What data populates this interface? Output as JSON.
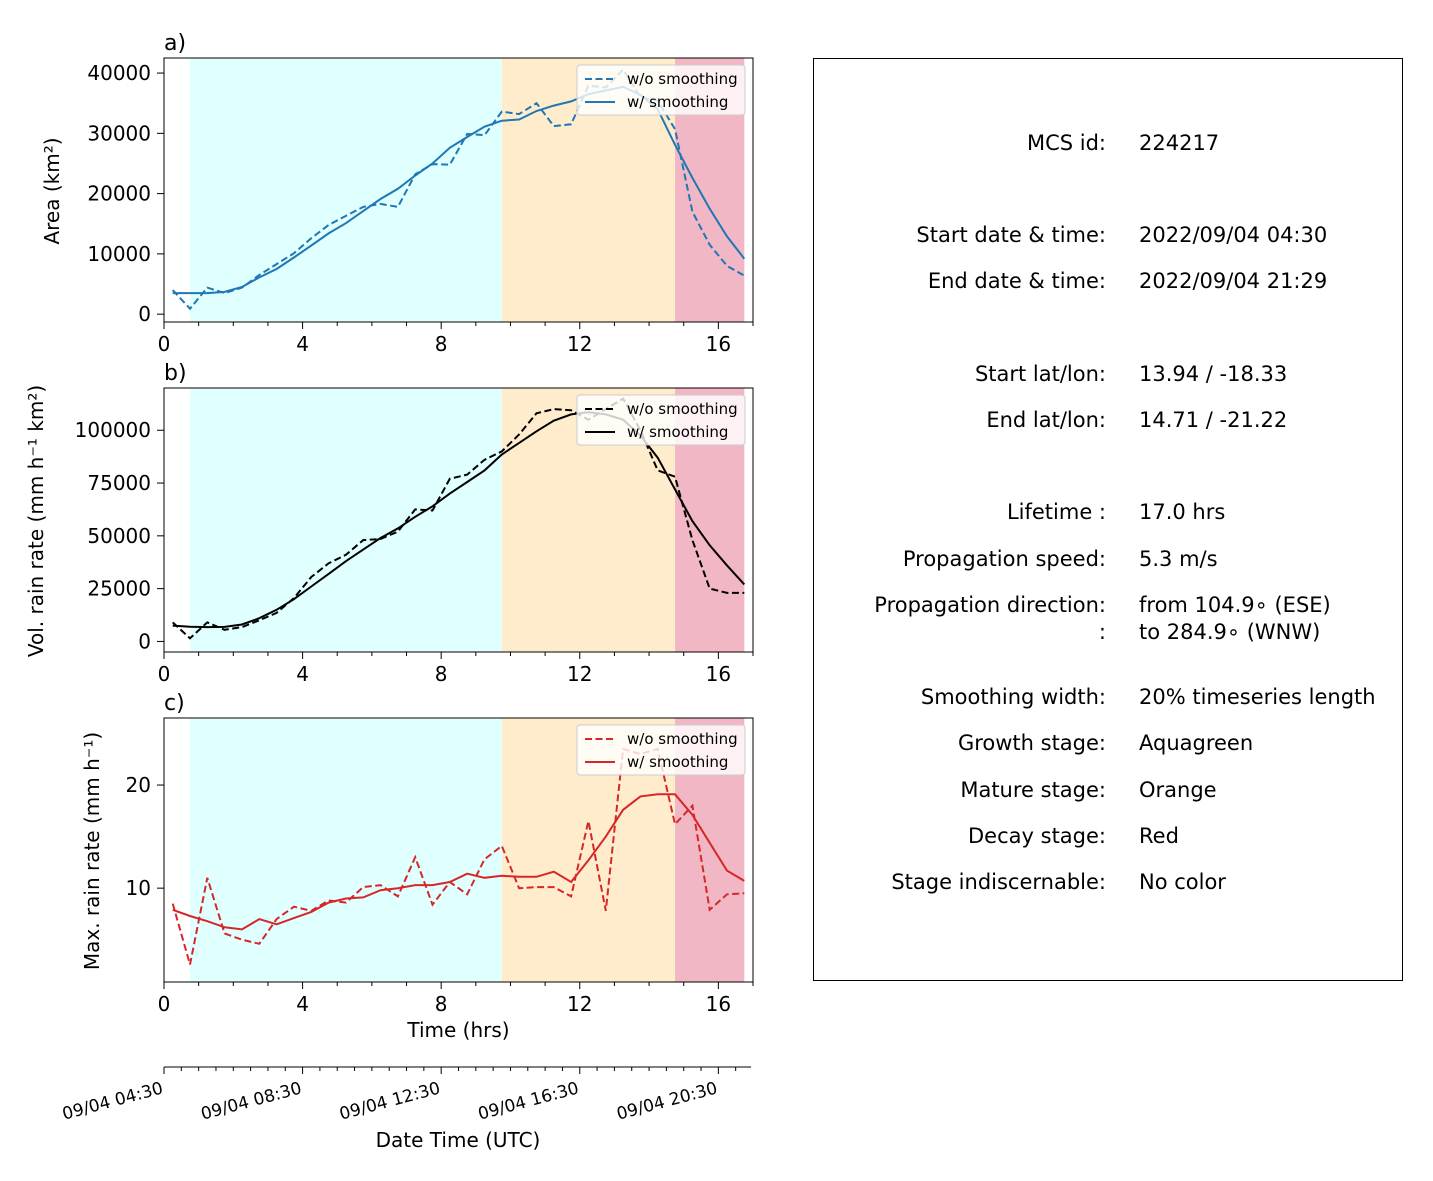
{
  "chart_data": [
    {
      "type": "line",
      "panel_label": "a)",
      "ylabel": "Area  (km²)",
      "xlim": [
        0,
        17
      ],
      "ylim": [
        -1300,
        42500
      ],
      "xticks": [
        0,
        4,
        8,
        12,
        16
      ],
      "yticks": [
        0,
        10000,
        20000,
        30000,
        40000
      ],
      "stages": [
        {
          "name": "Growth",
          "start": 0.75,
          "end": 9.75,
          "color": "#e0ffff"
        },
        {
          "name": "Mature",
          "start": 9.75,
          "end": 14.75,
          "color": "#ffeccc"
        },
        {
          "name": "Decay",
          "start": 14.75,
          "end": 16.75,
          "color": "#f2b7c4"
        }
      ],
      "legend": {
        "position": "top-right",
        "entries": [
          "w/o smoothing",
          "w/ smoothing"
        ]
      },
      "series": [
        {
          "name": "w/o smoothing",
          "style": "dashed",
          "color": "#1f77b4",
          "x": [
            0.25,
            0.75,
            1.25,
            1.75,
            2.25,
            2.75,
            3.25,
            3.75,
            4.25,
            4.75,
            5.25,
            5.75,
            6.25,
            6.75,
            7.25,
            7.75,
            8.25,
            8.75,
            9.25,
            9.75,
            10.25,
            10.75,
            11.25,
            11.75,
            12.25,
            12.75,
            13.25,
            13.75,
            14.25,
            14.75,
            15.25,
            15.75,
            16.25,
            16.75
          ],
          "y": [
            4000,
            900,
            4400,
            3500,
            4400,
            6500,
            8300,
            10100,
            12600,
            14800,
            16300,
            17800,
            18300,
            17800,
            23200,
            24900,
            24800,
            29900,
            29700,
            33600,
            33200,
            35000,
            31200,
            31500,
            37900,
            37600,
            40600,
            36000,
            35400,
            30700,
            17000,
            11500,
            8000,
            6400
          ]
        },
        {
          "name": "w/ smoothing",
          "style": "solid",
          "color": "#1f77b4",
          "x": [
            0.25,
            0.75,
            1.25,
            1.75,
            2.25,
            2.75,
            3.25,
            3.75,
            4.25,
            4.75,
            5.25,
            5.75,
            6.25,
            6.75,
            7.25,
            7.75,
            8.25,
            8.75,
            9.25,
            9.75,
            10.25,
            10.75,
            11.25,
            11.75,
            12.25,
            12.75,
            13.25,
            13.75,
            14.25,
            14.75,
            15.25,
            15.75,
            16.25,
            16.75
          ],
          "y": [
            3500,
            3500,
            3500,
            3700,
            4500,
            6100,
            7500,
            9400,
            11400,
            13400,
            15100,
            17100,
            19100,
            20800,
            23000,
            25000,
            27600,
            29400,
            31100,
            32100,
            32300,
            33700,
            34600,
            35300,
            36500,
            37100,
            37700,
            36400,
            34000,
            28100,
            22600,
            17500,
            12900,
            9200
          ]
        }
      ]
    },
    {
      "type": "line",
      "panel_label": "b)",
      "ylabel": "Vol. rain rate (mm h⁻¹ km²)",
      "xlim": [
        0,
        17
      ],
      "ylim": [
        -5000,
        120000
      ],
      "xticks": [
        0,
        4,
        8,
        12,
        16
      ],
      "yticks": [
        0,
        25000,
        50000,
        75000,
        100000
      ],
      "stages": [
        {
          "name": "Growth",
          "start": 0.75,
          "end": 9.75,
          "color": "#e0ffff"
        },
        {
          "name": "Mature",
          "start": 9.75,
          "end": 14.75,
          "color": "#ffeccc"
        },
        {
          "name": "Decay",
          "start": 14.75,
          "end": 16.75,
          "color": "#f2b7c4"
        }
      ],
      "legend": {
        "position": "top-right",
        "entries": [
          "w/o smoothing",
          "w/ smoothing"
        ]
      },
      "series": [
        {
          "name": "w/o smoothing",
          "style": "dashed",
          "color": "#000000",
          "x": [
            0.25,
            0.75,
            1.25,
            1.75,
            2.25,
            2.75,
            3.25,
            3.75,
            4.25,
            4.75,
            5.25,
            5.75,
            6.25,
            6.75,
            7.25,
            7.75,
            8.25,
            8.75,
            9.25,
            9.75,
            10.25,
            10.75,
            11.25,
            11.75,
            12.25,
            12.75,
            13.25,
            13.75,
            14.25,
            14.75,
            15.25,
            15.75,
            16.25,
            16.75
          ],
          "y": [
            9000,
            1500,
            9000,
            5500,
            6800,
            10000,
            13500,
            20500,
            30500,
            37000,
            41000,
            48000,
            48500,
            52000,
            62500,
            62000,
            77000,
            79000,
            86000,
            90000,
            98000,
            108000,
            110000,
            109500,
            105000,
            110000,
            115000,
            100000,
            81000,
            78000,
            48000,
            25000,
            23000,
            23000
          ]
        },
        {
          "name": "w/ smoothing",
          "style": "solid",
          "color": "#000000",
          "x": [
            0.25,
            0.75,
            1.25,
            1.75,
            2.25,
            2.75,
            3.25,
            3.75,
            4.25,
            4.75,
            5.25,
            5.75,
            6.25,
            6.75,
            7.25,
            7.75,
            8.25,
            8.75,
            9.25,
            9.75,
            10.25,
            10.75,
            11.25,
            11.75,
            12.25,
            12.75,
            13.25,
            13.75,
            14.25,
            14.75,
            15.25,
            15.75,
            16.25,
            16.75
          ],
          "y": [
            7500,
            7000,
            6800,
            6900,
            8000,
            11000,
            15000,
            20000,
            26000,
            32000,
            38000,
            43500,
            49000,
            53500,
            59000,
            64000,
            70000,
            75500,
            81000,
            88500,
            94000,
            99500,
            104500,
            107500,
            108500,
            107500,
            105000,
            97500,
            87000,
            72000,
            57000,
            45500,
            36000,
            27000
          ]
        }
      ]
    },
    {
      "type": "line",
      "panel_label": "c)",
      "ylabel": "Max. rain rate  (mm h⁻¹)",
      "xlabel": "Time (hrs)",
      "xlim": [
        0,
        17
      ],
      "ylim": [
        0.9,
        26.5
      ],
      "xticks": [
        0,
        4,
        8,
        12,
        16
      ],
      "yticks": [
        10,
        20
      ],
      "stages": [
        {
          "name": "Growth",
          "start": 0.75,
          "end": 9.75,
          "color": "#e0ffff"
        },
        {
          "name": "Mature",
          "start": 9.75,
          "end": 14.75,
          "color": "#ffeccc"
        },
        {
          "name": "Decay",
          "start": 14.75,
          "end": 16.75,
          "color": "#f2b7c4"
        }
      ],
      "legend": {
        "position": "top-right",
        "entries": [
          "w/o smoothing",
          "w/ smoothing"
        ]
      },
      "series": [
        {
          "name": "w/o smoothing",
          "style": "dashed",
          "color": "#d62728",
          "x": [
            0.25,
            0.75,
            1.25,
            1.75,
            2.25,
            2.75,
            3.25,
            3.75,
            4.25,
            4.75,
            5.25,
            5.75,
            6.25,
            6.75,
            7.25,
            7.75,
            8.25,
            8.75,
            9.25,
            9.75,
            10.25,
            10.75,
            11.25,
            11.75,
            12.25,
            12.75,
            13.25,
            13.75,
            14.25,
            14.75,
            15.25,
            15.75,
            16.25,
            16.75
          ],
          "y": [
            8.5,
            2.6,
            11.0,
            5.6,
            5.0,
            4.6,
            7.0,
            8.2,
            7.8,
            8.8,
            8.6,
            10.1,
            10.3,
            9.2,
            13.0,
            8.4,
            10.6,
            9.4,
            12.8,
            14.1,
            10.0,
            10.1,
            10.1,
            9.2,
            16.5,
            7.8,
            23.5,
            23.0,
            23.5,
            16.2,
            18.0,
            7.9,
            9.4,
            9.5
          ]
        },
        {
          "name": "w/ smoothing",
          "style": "solid",
          "color": "#d62728",
          "x": [
            0.25,
            0.75,
            1.25,
            1.75,
            2.25,
            2.75,
            3.25,
            3.75,
            4.25,
            4.75,
            5.25,
            5.75,
            6.25,
            6.75,
            7.25,
            7.75,
            8.25,
            8.75,
            9.25,
            9.75,
            10.25,
            10.75,
            11.25,
            11.75,
            12.25,
            12.75,
            13.25,
            13.75,
            14.25,
            14.75,
            15.25,
            15.75,
            16.25,
            16.75
          ],
          "y": [
            7.9,
            7.3,
            6.8,
            6.2,
            6.0,
            7.0,
            6.5,
            7.1,
            7.7,
            8.6,
            9.0,
            9.1,
            9.8,
            10.0,
            10.3,
            10.3,
            10.6,
            11.4,
            11.0,
            11.2,
            11.1,
            11.1,
            11.6,
            10.6,
            12.7,
            15.0,
            17.6,
            18.9,
            19.1,
            19.1,
            17.1,
            14.4,
            11.7,
            10.7
          ]
        }
      ]
    }
  ],
  "date_axis": {
    "xlabel": "Date Time (UTC)",
    "major_ticks": [
      {
        "hour": 0,
        "label": "09/04 04:30"
      },
      {
        "hour": 4,
        "label": "09/04 08:30"
      },
      {
        "hour": 8,
        "label": "09/04 12:30"
      },
      {
        "hour": 12,
        "label": "09/04 16:30"
      },
      {
        "hour": 16,
        "label": "09/04 20:30"
      }
    ]
  },
  "info": {
    "rows": [
      {
        "label": "MCS id:",
        "value": "224217"
      },
      {
        "label": "Start date & time:",
        "value": "2022/09/04 04:30"
      },
      {
        "label": "End date & time:",
        "value": "2022/09/04 21:29"
      },
      {
        "label": "Start lat/lon:",
        "value": "13.94 / -18.33"
      },
      {
        "label": "End lat/lon:",
        "value": "14.71 / -21.22"
      },
      {
        "label": "Lifetime :",
        "value": "17.0 hrs"
      },
      {
        "label": "Propagation speed:",
        "value": "5.3 m/s"
      },
      {
        "label": "Propagation direction:",
        "value": "from 104.9∘ (ESE)"
      },
      {
        "label": ":",
        "value": "to   284.9∘ (WNW)"
      },
      {
        "label": "Smoothing width:",
        "value": "20% timeseries length"
      },
      {
        "label": "Growth stage:",
        "value": "Aquagreen"
      },
      {
        "label": "Mature stage:",
        "value": "Orange"
      },
      {
        "label": "Decay stage:",
        "value": "Red"
      },
      {
        "label": "Stage indiscernable:",
        "value": "No color"
      }
    ]
  }
}
